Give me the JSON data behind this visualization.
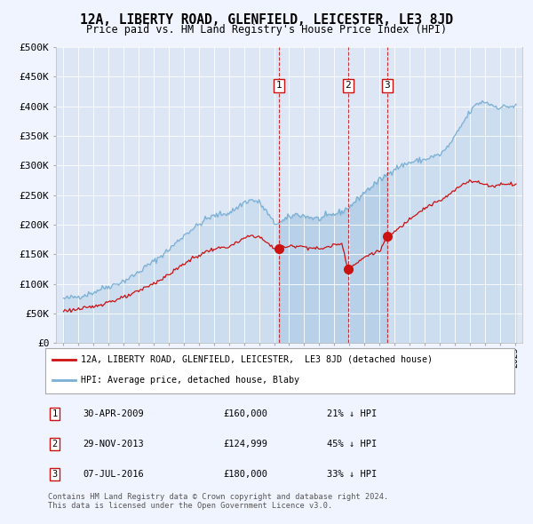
{
  "title": "12A, LIBERTY ROAD, GLENFIELD, LEICESTER, LE3 8JD",
  "subtitle": "Price paid vs. HM Land Registry's House Price Index (HPI)",
  "background_color": "#f0f4ff",
  "plot_bg": "#dce6f5",
  "ylim": [
    0,
    500000
  ],
  "yticks": [
    0,
    50000,
    100000,
    150000,
    200000,
    250000,
    300000,
    350000,
    400000,
    450000,
    500000
  ],
  "ytick_labels": [
    "£0",
    "£50K",
    "£100K",
    "£150K",
    "£200K",
    "£250K",
    "£300K",
    "£350K",
    "£400K",
    "£450K",
    "£500K"
  ],
  "xlim_start": 1994.5,
  "xlim_end": 2025.5,
  "sale_dates": [
    2009.33,
    2013.91,
    2016.52
  ],
  "sale_prices": [
    160000,
    124999,
    180000
  ],
  "sale_labels": [
    "1",
    "2",
    "3"
  ],
  "hpi_color": "#7ab0d4",
  "hpi_fill_color": "#c8dcf0",
  "property_color": "#cc1111",
  "marker_box_color": "#cc1111",
  "legend_label_property": "12A, LIBERTY ROAD, GLENFIELD, LEICESTER,  LE3 8JD (detached house)",
  "legend_label_hpi": "HPI: Average price, detached house, Blaby",
  "transactions": [
    {
      "num": "1",
      "date": "30-APR-2009",
      "price": "£160,000",
      "pct": "21% ↓ HPI"
    },
    {
      "num": "2",
      "date": "29-NOV-2013",
      "price": "£124,999",
      "pct": "45% ↓ HPI"
    },
    {
      "num": "3",
      "date": "07-JUL-2016",
      "price": "£180,000",
      "pct": "33% ↓ HPI"
    }
  ],
  "footnote": "Contains HM Land Registry data © Crown copyright and database right 2024.\nThis data is licensed under the Open Government Licence v3.0."
}
